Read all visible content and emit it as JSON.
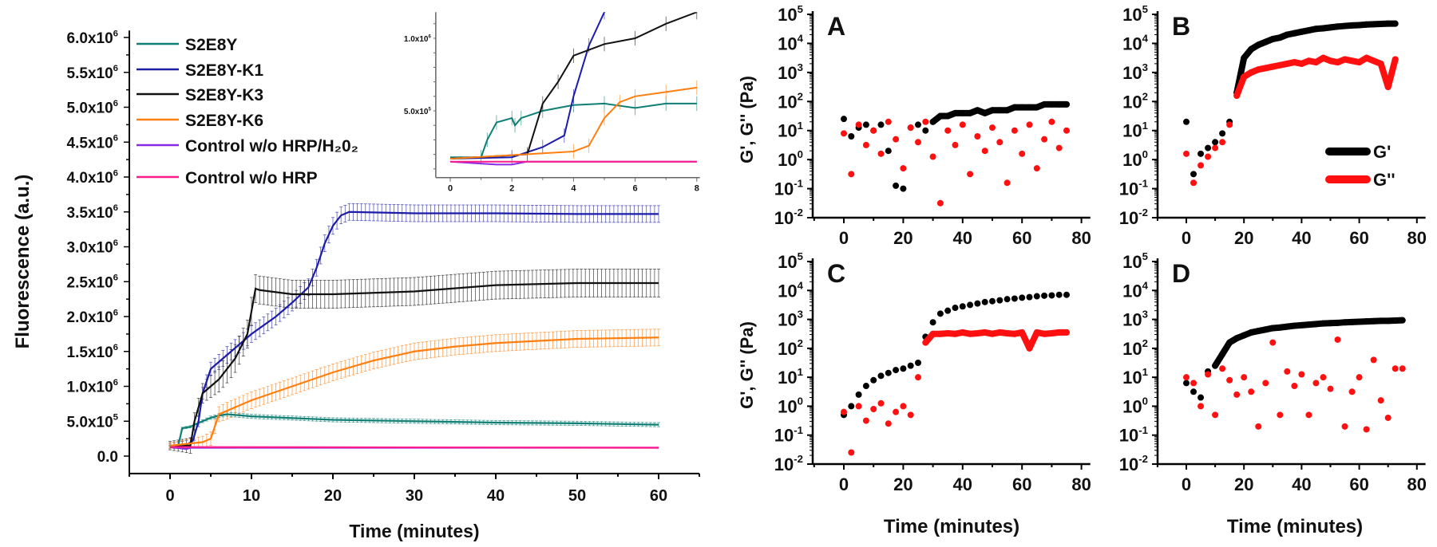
{
  "chart_data": [
    {
      "id": "fluorescence-main",
      "type": "line",
      "title": "",
      "xlabel": "Time (minutes)",
      "ylabel": "Fluorescence (a.u.)",
      "xlim": [
        -5,
        65
      ],
      "ylim": [
        -0.25,
        6.1
      ],
      "y_unit_multiplier": 1000000,
      "x_ticks": [
        0,
        10,
        20,
        30,
        40,
        50,
        60
      ],
      "y_ticks": [
        0,
        0.5,
        1.0,
        1.5,
        2.0,
        2.5,
        3.0,
        3.5,
        4.0,
        4.5,
        5.0,
        5.5,
        6.0
      ],
      "y_tick_labels": [
        "0.0",
        "5.0x10^5",
        "1.0x10^6",
        "1.5x10^6",
        "2.0x10^6",
        "2.5x10^6",
        "3.0x10^6",
        "3.5x10^6",
        "4.0x10^6",
        "4.5x10^6",
        "5.0x10^6",
        "5.5x10^6",
        "6.0x10^6"
      ],
      "legend_position": "top-left",
      "series": [
        {
          "name": "S2E8Y",
          "color": "#0f7f75",
          "sd": 0.03,
          "x": [
            0,
            1,
            1.5,
            2.5,
            3,
            5,
            6,
            7,
            10,
            20,
            30,
            40,
            50,
            60
          ],
          "y": [
            0.15,
            0.15,
            0.4,
            0.42,
            0.45,
            0.55,
            0.58,
            0.6,
            0.57,
            0.52,
            0.5,
            0.48,
            0.47,
            0.45
          ]
        },
        {
          "name": "S2E8Y-K1",
          "color": "#1c1ca8",
          "sd": 0.12,
          "x": [
            0,
            2,
            2.8,
            3.5,
            4,
            5,
            7,
            10,
            13,
            15,
            17,
            18,
            19,
            20,
            21,
            22,
            30,
            40,
            50,
            60
          ],
          "y": [
            0.15,
            0.16,
            0.22,
            0.5,
            0.9,
            1.25,
            1.45,
            1.75,
            2.0,
            2.2,
            2.42,
            2.7,
            3.05,
            3.3,
            3.45,
            3.5,
            3.48,
            3.48,
            3.47,
            3.47
          ]
        },
        {
          "name": "S2E8Y-K3",
          "color": "#111111",
          "sd": 0.2,
          "x": [
            0,
            2.5,
            3,
            4,
            6,
            8,
            9.5,
            10.5,
            11,
            15,
            20,
            30,
            40,
            50,
            60
          ],
          "y": [
            0.15,
            0.15,
            0.5,
            0.9,
            1.1,
            1.4,
            1.75,
            2.4,
            2.38,
            2.32,
            2.32,
            2.36,
            2.45,
            2.48,
            2.48
          ]
        },
        {
          "name": "S2E8Y-K6",
          "color": "#ff7f10",
          "sd": 0.12,
          "x": [
            0,
            4,
            5,
            6,
            10,
            15,
            20,
            25,
            30,
            35,
            40,
            50,
            60
          ],
          "y": [
            0.15,
            0.2,
            0.25,
            0.6,
            0.8,
            1.0,
            1.2,
            1.37,
            1.5,
            1.57,
            1.62,
            1.68,
            1.7
          ]
        },
        {
          "name": "Control w/o HRP/H₂0₂",
          "color": "#8a2be2",
          "sd": 0,
          "x": [
            0,
            1.5,
            2,
            2.5,
            60
          ],
          "y": [
            0.13,
            0.11,
            0.1,
            0.12,
            0.12
          ]
        },
        {
          "name": "Control w/o HRP",
          "color": "#ff1a8c",
          "sd": 0,
          "x": [
            0,
            60
          ],
          "y": [
            0.13,
            0.12
          ]
        }
      ]
    },
    {
      "id": "fluorescence-inset",
      "type": "line",
      "xlim": [
        -0.47,
        8.1
      ],
      "ylim": [
        0.04,
        1.18
      ],
      "x_ticks": [
        0,
        2,
        4,
        6,
        8
      ],
      "y_ticks": [
        0.5,
        1.0
      ],
      "y_tick_labels": [
        "5.0x10^5",
        "1.0x10^6"
      ],
      "series": [
        {
          "name": "S2E8Y",
          "color": "#0f7f75",
          "x": [
            0,
            1,
            1.2,
            1.5,
            2,
            2.1,
            2.3,
            3,
            4,
            5,
            6,
            7,
            8
          ],
          "y": [
            0.18,
            0.18,
            0.3,
            0.42,
            0.45,
            0.4,
            0.45,
            0.5,
            0.54,
            0.55,
            0.52,
            0.55,
            0.55
          ]
        },
        {
          "name": "S2E8Y-K1",
          "color": "#1c1ca8",
          "x": [
            0,
            2,
            3,
            3.7,
            4,
            4.5,
            5,
            5.3
          ],
          "y": [
            0.17,
            0.18,
            0.25,
            0.33,
            0.6,
            0.95,
            1.18,
            1.25
          ]
        },
        {
          "name": "S2E8Y-K3",
          "color": "#111111",
          "x": [
            0,
            2.5,
            3,
            3.5,
            4,
            5,
            6,
            7,
            8
          ],
          "y": [
            0.17,
            0.2,
            0.55,
            0.7,
            0.88,
            0.96,
            1.0,
            1.1,
            1.18
          ]
        },
        {
          "name": "S2E8Y-K6",
          "color": "#ff7f10",
          "x": [
            0,
            4,
            4.5,
            5,
            5.5,
            6,
            7,
            8
          ],
          "y": [
            0.17,
            0.22,
            0.26,
            0.45,
            0.56,
            0.6,
            0.63,
            0.66
          ]
        },
        {
          "name": "Control w/o HRP/H₂0₂",
          "color": "#8a2be2",
          "x": [
            0,
            1.5,
            2,
            2.5,
            8
          ],
          "y": [
            0.15,
            0.13,
            0.13,
            0.15,
            0.15
          ]
        },
        {
          "name": "Control w/o HRP",
          "color": "#ff1a8c",
          "x": [
            0,
            8
          ],
          "y": [
            0.15,
            0.15
          ]
        }
      ]
    },
    {
      "id": "rheology",
      "type": "scatter",
      "y_scale": "log",
      "xlabel": "Time (minutes)",
      "ylabel": "G', G'' (Pa)",
      "xlim": [
        -10,
        83
      ],
      "ylim_log10": [
        -2,
        5
      ],
      "x_ticks": [
        0,
        20,
        40,
        60,
        80
      ],
      "y_tick_labels": [
        "10^-2",
        "10^-1",
        "10^0",
        "10^1",
        "10^2",
        "10^3",
        "10^4",
        "10^5"
      ],
      "legend": [
        {
          "name": "G'",
          "color": "#000000"
        },
        {
          "name": "G''",
          "color": "#ff1010"
        }
      ],
      "legend_position": "panel B, right",
      "t": [
        0,
        2.5,
        5,
        7.5,
        10,
        12.5,
        15,
        17.5,
        20,
        22.5,
        25,
        27.5,
        30,
        32.5,
        35,
        37.5,
        40,
        42.5,
        45,
        47.5,
        50,
        52.5,
        55,
        57.5,
        60,
        62.5,
        65,
        67.5,
        70,
        72.5,
        75
      ],
      "panels": [
        {
          "label": "A",
          "G_prime_log10": [
            1.4,
            0.8,
            1.1,
            1.2,
            1.0,
            1.2,
            0.3,
            -0.9,
            -1.0,
            1.1,
            1.2,
            1.0,
            1.3,
            1.5,
            1.5,
            1.6,
            1.6,
            1.6,
            1.7,
            1.6,
            1.7,
            1.7,
            1.7,
            1.8,
            1.8,
            1.8,
            1.8,
            1.9,
            1.9,
            1.9,
            1.9
          ],
          "G_double_prime_log10": [
            0.9,
            -0.5,
            1.2,
            0.5,
            1.0,
            0.2,
            1.3,
            0.7,
            -0.3,
            1.1,
            0.6,
            1.3,
            0.1,
            -1.5,
            1.0,
            0.5,
            1.2,
            -0.5,
            0.8,
            0.3,
            1.1,
            0.6,
            -0.8,
            1.0,
            0.2,
            1.2,
            -0.3,
            0.7,
            1.3,
            0.4,
            1.0
          ]
        },
        {
          "label": "B",
          "G_prime_log10": [
            1.3,
            -0.5,
            0.2,
            0.4,
            0.6,
            0.9,
            1.3,
            2.3,
            3.5,
            3.8,
            3.95,
            4.05,
            4.15,
            4.2,
            4.3,
            4.35,
            4.4,
            4.45,
            4.5,
            4.52,
            4.55,
            4.58,
            4.6,
            4.62,
            4.63,
            4.65,
            4.66,
            4.67,
            4.68,
            4.68,
            null
          ],
          "G_double_prime_log10": [
            0.2,
            -0.8,
            -0.2,
            0.1,
            0.4,
            0.6,
            1.2,
            2.2,
            2.85,
            3.0,
            3.1,
            3.15,
            3.2,
            3.25,
            3.3,
            3.35,
            3.3,
            3.4,
            3.35,
            3.5,
            3.4,
            3.35,
            3.45,
            3.4,
            3.35,
            3.5,
            3.4,
            3.3,
            2.5,
            3.45,
            null
          ]
        },
        {
          "label": "C",
          "G_prime_log10": [
            -0.3,
            0.0,
            0.4,
            0.7,
            0.9,
            1.05,
            1.15,
            1.25,
            1.3,
            1.4,
            1.5,
            2.4,
            2.9,
            3.2,
            3.3,
            3.4,
            3.45,
            3.5,
            3.55,
            3.6,
            3.63,
            3.66,
            3.7,
            3.72,
            3.75,
            3.77,
            3.8,
            3.82,
            3.83,
            3.85,
            3.85
          ],
          "G_double_prime_log10": [
            -0.2,
            -1.6,
            0.0,
            -0.5,
            -0.1,
            0.1,
            -0.6,
            -0.2,
            0.0,
            -0.3,
            1.0,
            2.2,
            2.5,
            2.5,
            2.52,
            2.5,
            2.55,
            2.5,
            2.52,
            2.55,
            2.5,
            2.55,
            2.52,
            2.5,
            2.55,
            2.0,
            2.55,
            2.5,
            2.52,
            2.55,
            2.55
          ]
        },
        {
          "label": "D",
          "G_prime_log10": [
            0.8,
            0.5,
            0.3,
            1.2,
            1.4,
            1.8,
            2.2,
            2.35,
            2.45,
            2.55,
            2.6,
            2.65,
            2.7,
            2.72,
            2.75,
            2.78,
            2.8,
            2.82,
            2.84,
            2.86,
            2.87,
            2.88,
            2.9,
            2.91,
            2.92,
            2.93,
            2.94,
            2.95,
            2.95,
            2.96,
            2.97
          ],
          "G_double_prime_log10": [
            1.0,
            0.8,
            0.0,
            1.1,
            -0.3,
            1.3,
            0.9,
            0.4,
            1.0,
            0.5,
            -0.7,
            0.8,
            2.2,
            -0.3,
            1.2,
            0.7,
            1.1,
            -0.3,
            0.8,
            1.0,
            0.6,
            2.3,
            -0.7,
            0.5,
            1.0,
            -0.8,
            1.6,
            0.2,
            -0.4,
            1.3,
            1.3
          ]
        }
      ]
    }
  ]
}
